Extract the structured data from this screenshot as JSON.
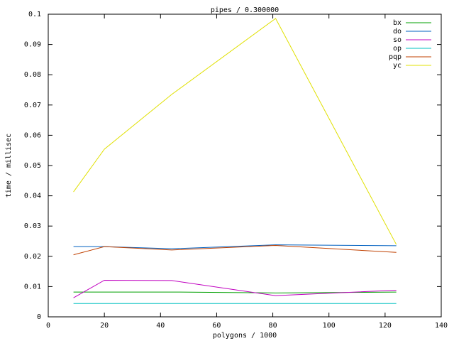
{
  "chart_data": {
    "type": "line",
    "title": "pipes / 0.300000",
    "x_label": "polygons / 1000",
    "y_label": "time / millisec",
    "x": [
      9,
      20,
      44,
      81,
      124
    ],
    "series": [
      {
        "name": "bx",
        "color": "#00a000",
        "values": [
          0.0082,
          0.0082,
          0.0082,
          0.0079,
          0.0082
        ]
      },
      {
        "name": "do",
        "color": "#0060c0",
        "values": [
          0.0232,
          0.0232,
          0.0225,
          0.0238,
          0.0235
        ]
      },
      {
        "name": "so",
        "color": "#c000c0",
        "values": [
          0.0063,
          0.0121,
          0.012,
          0.007,
          0.0088
        ]
      },
      {
        "name": "op",
        "color": "#00c0c0",
        "values": [
          0.0044,
          0.0044,
          0.0044,
          0.0044,
          0.0044
        ]
      },
      {
        "name": "pqp",
        "color": "#c04000",
        "values": [
          0.0205,
          0.0232,
          0.0221,
          0.0236,
          0.0213
        ]
      },
      {
        "name": "yc",
        "color": "#e0e000",
        "values": [
          0.0413,
          0.0554,
          0.0735,
          0.0986,
          0.0239
        ]
      }
    ],
    "xlim": [
      0,
      140
    ],
    "xticks": [
      0,
      20,
      40,
      60,
      80,
      100,
      120,
      140
    ],
    "ylim": [
      0,
      0.1
    ],
    "yticks": [
      0,
      0.01,
      0.02,
      0.03,
      0.04,
      0.05,
      0.06,
      0.07,
      0.08,
      0.09,
      0.1
    ],
    "legend": "top-right"
  }
}
